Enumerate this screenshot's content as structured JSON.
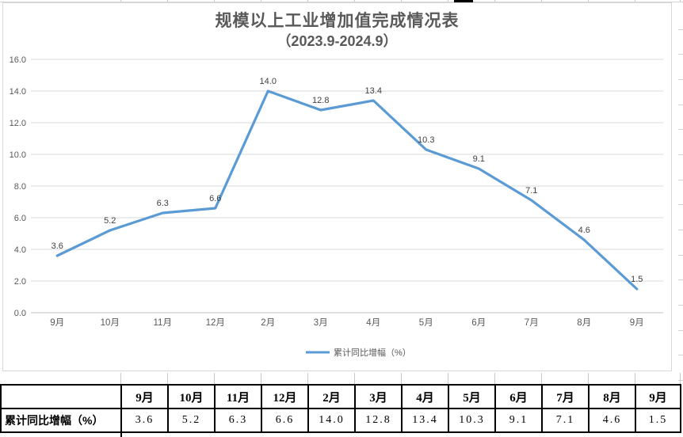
{
  "chart": {
    "title_line1": "规模以上工业增加值完成情况表",
    "title_line2": "（2023.9-2024.9）",
    "legend_label": "累计同比增幅（%）",
    "colors": {
      "line": "#5B9BD5",
      "title_text": "#595959",
      "axis_text": "#595959",
      "data_label_text": "#404040",
      "gridline": "#D9D9D9",
      "axis_line": "#BFBFBF",
      "table_border": "#000000"
    }
  },
  "chart_data": {
    "type": "line",
    "title": "规模以上工业增加值完成情况表（2023.9-2024.9）",
    "categories": [
      "9月",
      "10月",
      "11月",
      "12月",
      "2月",
      "3月",
      "4月",
      "5月",
      "6月",
      "7月",
      "8月",
      "9月"
    ],
    "series": [
      {
        "name": "累计同比增幅（%）",
        "values": [
          3.6,
          5.2,
          6.3,
          6.6,
          14.0,
          12.8,
          13.4,
          10.3,
          9.1,
          7.1,
          4.6,
          1.5
        ]
      }
    ],
    "ylim": [
      0,
      16
    ],
    "ytick_step": 2,
    "ytick_labels": [
      "0.0",
      "2.0",
      "4.0",
      "6.0",
      "8.0",
      "10.0",
      "12.0",
      "14.0",
      "16.0"
    ],
    "grid": true,
    "data_labels": true,
    "legend_position": "bottom"
  },
  "table": {
    "row_label": "累计同比增幅（%）"
  }
}
